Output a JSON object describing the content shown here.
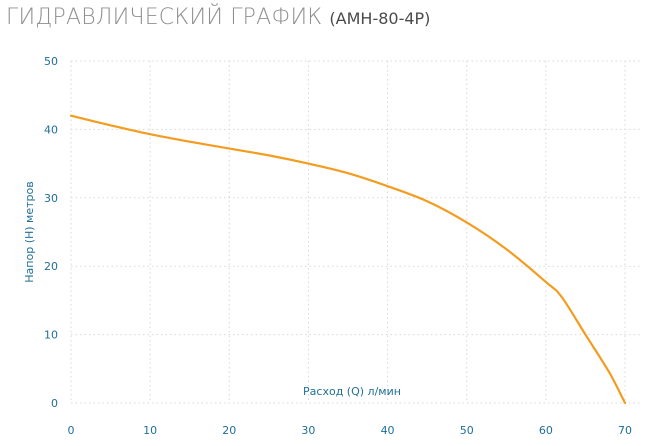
{
  "title": {
    "main": "ГИДРАВЛИЧЕСКИЙ ГРАФИК",
    "model": "(АМН-80-4Р)"
  },
  "colors": {
    "curve": "#f39c1f",
    "grid": "#d8d8d8",
    "tick": "#1f6f96",
    "title": "#8f8f8f"
  },
  "chart_data": {
    "type": "line",
    "title": "ГИДРАВЛИЧЕСКИЙ ГРАФИК (АМН-80-4Р)",
    "xlabel": "Расход (Q) л/мин",
    "ylabel": "Напор (H) метров",
    "xlim": [
      0,
      70
    ],
    "ylim": [
      0,
      50
    ],
    "xticks": [
      "0",
      "10",
      "20",
      "30",
      "40",
      "50",
      "60",
      "70"
    ],
    "yticks": [
      "0",
      "10",
      "20",
      "30",
      "40",
      "50"
    ],
    "grid": true,
    "grid_style": "dotted",
    "legend": "none",
    "series": [
      {
        "x": [
          0,
          5,
          10,
          15,
          20,
          25,
          30,
          35,
          40,
          45,
          50,
          55,
          60,
          62,
          65,
          68,
          70
        ],
        "y": [
          42,
          40.6,
          39.3,
          38.2,
          37.2,
          36.2,
          35,
          33.6,
          31.7,
          29.5,
          26.4,
          22.5,
          17.7,
          15.5,
          10,
          4.5,
          0
        ]
      }
    ]
  }
}
